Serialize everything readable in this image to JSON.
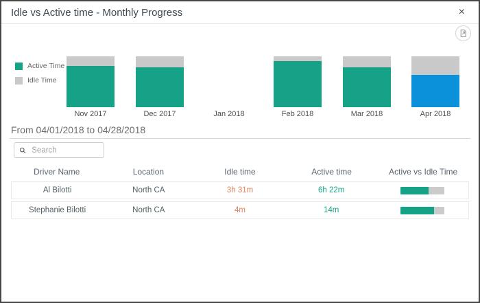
{
  "dialog": {
    "title": "Idle vs Active time - Monthly Progress",
    "close_icon": "×"
  },
  "colors": {
    "active": "#16a286",
    "idle": "#c9c9c9",
    "highlight": "#0b90da",
    "idle_text": "#e2815a",
    "progress_track": "#cbcbcb"
  },
  "chart_data": {
    "type": "bar",
    "stacked": true,
    "normalized": true,
    "categories": [
      "Nov 2017",
      "Dec 2017",
      "Jan 2018",
      "Feb 2018",
      "Mar 2018",
      "Apr 2018"
    ],
    "series": [
      {
        "name": "Active Time",
        "color": "#16a286",
        "values": [
          81,
          79,
          0,
          90,
          79,
          64
        ]
      },
      {
        "name": "Idle Time",
        "color": "#c9c9c9",
        "values": [
          19,
          21,
          0,
          10,
          21,
          36
        ]
      }
    ],
    "highlighted_category": "Apr 2018",
    "highlight_color": "#0b90da",
    "legend_position": "left",
    "grid": false,
    "ylim": [
      0,
      100
    ]
  },
  "period": {
    "label": "From 04/01/2018 to 04/28/2018"
  },
  "search": {
    "placeholder": "Search"
  },
  "table": {
    "columns": [
      "Driver Name",
      "Location",
      "Idle time",
      "Active time",
      "Active vs Idle Time"
    ],
    "rows": [
      {
        "driver": "Al Bilotti",
        "location": "North CA",
        "idle_time": "3h 31m",
        "active_time": "6h 22m",
        "active_pct": 64
      },
      {
        "driver": "Stephanie Bilotti",
        "location": "North CA",
        "idle_time": "4m",
        "active_time": "14m",
        "active_pct": 76
      }
    ]
  }
}
